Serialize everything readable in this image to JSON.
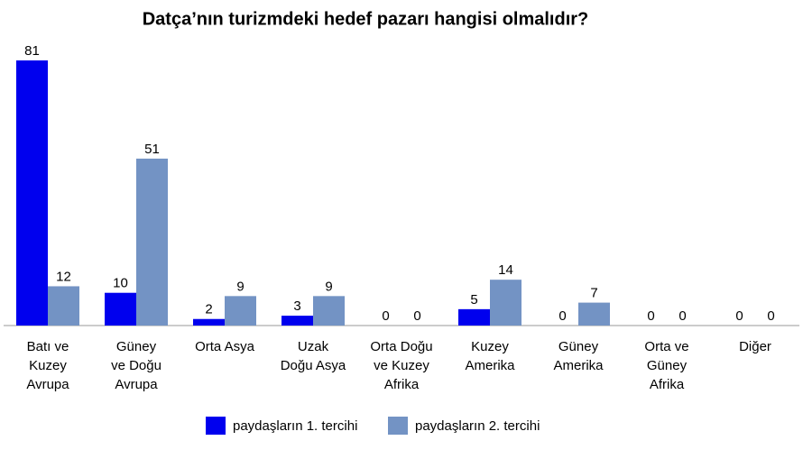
{
  "chart_data": {
    "type": "bar",
    "title": "Datça’nın turizmdeki hedef pazarı hangisi olmalıdır?",
    "categories": [
      "Batı ve\nKuzey\nAvrupa",
      "Güney\nve Doğu\nAvrupa",
      "Orta Asya",
      "Uzak\nDoğu Asya",
      "Orta Doğu\nve Kuzey\nAfrika",
      "Kuzey\nAmerika",
      "Güney\nAmerika",
      "Orta ve\nGüney\nAfrika",
      "Diğer"
    ],
    "series": [
      {
        "name": "paydaşların 1. tercihi",
        "color": "#0000ee",
        "values": [
          81,
          10,
          2,
          3,
          0,
          5,
          0,
          0,
          0
        ]
      },
      {
        "name": "paydaşların 2. tercihi",
        "color": "#7393c4",
        "values": [
          12,
          51,
          9,
          9,
          0,
          14,
          7,
          0,
          0
        ]
      }
    ],
    "legend": "bottom"
  }
}
